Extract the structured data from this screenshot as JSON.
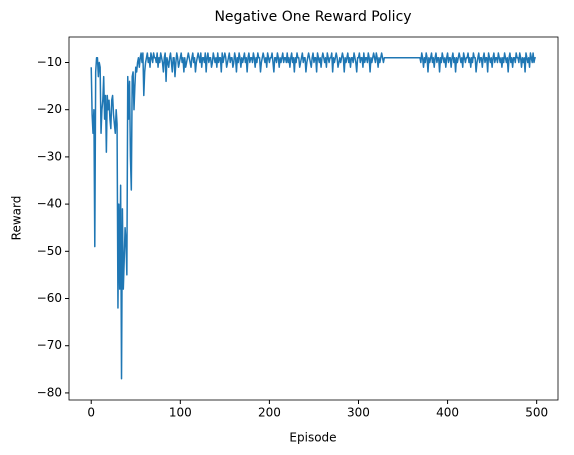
{
  "chart_data": {
    "type": "line",
    "title": "Negative One Reward Policy",
    "x_label": "Episode",
    "y_label": "Reward",
    "xlim": [
      -24.95,
      523.95
    ],
    "xticks": [
      0,
      100,
      200,
      300,
      400,
      500
    ],
    "ylim": [
      -81.5,
      -4.6
    ],
    "yticks": [
      {
        "value": -10,
        "label": "−10"
      },
      {
        "value": -20,
        "label": "−20"
      },
      {
        "value": -30,
        "label": "−30"
      },
      {
        "value": -40,
        "label": "−40"
      },
      {
        "value": -50,
        "label": "−50"
      },
      {
        "value": -60,
        "label": "−60"
      },
      {
        "value": -70,
        "label": "−70"
      },
      {
        "value": -80,
        "label": "−80"
      }
    ],
    "grid": false,
    "color": "#1f77b4",
    "values": [
      -11,
      -21,
      -25,
      -20,
      -49,
      -12,
      -9,
      -9,
      -13,
      -10,
      -11,
      -25,
      -20,
      -18,
      -13,
      -22,
      -17,
      -29,
      -17,
      -20,
      -18,
      -22,
      -24,
      -18,
      -17,
      -21,
      -23,
      -25,
      -20,
      -23,
      -62,
      -40,
      -58,
      -36,
      -77,
      -41,
      -58,
      -52,
      -45,
      -48,
      -55,
      -13,
      -22,
      -14,
      -30,
      -37,
      -13,
      -12,
      -20,
      -15,
      -11,
      -12,
      -10,
      -9,
      -11,
      -9,
      -8,
      -10,
      -8,
      -17,
      -12,
      -10,
      -9,
      -8,
      -10,
      -9,
      -11,
      -8,
      -9,
      -10,
      -8,
      -9,
      -9,
      -10,
      -8,
      -11,
      -9,
      -10,
      -8,
      -9,
      -10,
      -12,
      -9,
      -8,
      -14,
      -9,
      -10,
      -11,
      -9,
      -8,
      -10,
      -12,
      -9,
      -9,
      -13,
      -10,
      -8,
      -9,
      -11,
      -10,
      -9,
      -8,
      -10,
      -9,
      -12,
      -9,
      -11,
      -10,
      -9,
      -8,
      -9,
      -10,
      -11,
      -9,
      -8,
      -10,
      -9,
      -12,
      -10,
      -9,
      -8,
      -9,
      -10,
      -8,
      -11,
      -9,
      -9,
      -10,
      -8,
      -12,
      -9,
      -8,
      -10,
      -9,
      -9,
      -11,
      -10,
      -8,
      -9,
      -10,
      -9,
      -11,
      -8,
      -10,
      -9,
      -9,
      -12,
      -8,
      -10,
      -9,
      -8,
      -9,
      -11,
      -10,
      -9,
      -8,
      -10,
      -9,
      -9,
      -11,
      -10,
      -8,
      -9,
      -12,
      -9,
      -10,
      -8,
      -9,
      -11,
      -9,
      -10,
      -9,
      -8,
      -10,
      -9,
      -12,
      -9,
      -8,
      -10,
      -9,
      -9,
      -10,
      -8,
      -9,
      -11,
      -9,
      -10,
      -8,
      -9,
      -9,
      -12,
      -10,
      -9,
      -8,
      -9,
      -10,
      -9,
      -11,
      -8,
      -9,
      -10,
      -9,
      -9,
      -8,
      -10,
      -12,
      -9,
      -9,
      -10,
      -8,
      -9,
      -11,
      -9,
      -10,
      -9,
      -8,
      -10,
      -9,
      -9,
      -10,
      -8,
      -10,
      -9,
      -11,
      -9,
      -8,
      -10,
      -9,
      -12,
      -9,
      -10,
      -8,
      -9,
      -9,
      -11,
      -10,
      -9,
      -8,
      -10,
      -9,
      -9,
      -12,
      -10,
      -9,
      -8,
      -9,
      -10,
      -11,
      -9,
      -8,
      -10,
      -9,
      -9,
      -12,
      -8,
      -9,
      -10,
      -9,
      -11,
      -9,
      -8,
      -9,
      -10,
      -9,
      -11,
      -8,
      -9,
      -10,
      -9,
      -9,
      -8,
      -12,
      -9,
      -10,
      -9,
      -8,
      -9,
      -11,
      -10,
      -9,
      -10,
      -9,
      -8,
      -9,
      -12,
      -9,
      -10,
      -9,
      -8,
      -10,
      -9,
      -11,
      -9,
      -9,
      -10,
      -8,
      -9,
      -10,
      -12,
      -9,
      -9,
      -8,
      -10,
      -9,
      -9,
      -11,
      -8,
      -10,
      -9,
      -9,
      -10,
      -8,
      -9,
      -12,
      -9,
      -10,
      -9,
      -8,
      -9,
      -10,
      -8,
      -9,
      -11,
      -9,
      -10,
      -9,
      -8,
      -9,
      -10,
      -9,
      -9,
      -9,
      -9,
      -9,
      -9,
      -9,
      -9,
      -9,
      -9,
      -9,
      -9,
      -9,
      -9,
      -9,
      -9,
      -9,
      -9,
      -9,
      -9,
      -9,
      -9,
      -9,
      -9,
      -9,
      -9,
      -9,
      -9,
      -9,
      -9,
      -9,
      -9,
      -9,
      -9,
      -9,
      -9,
      -9,
      -9,
      -9,
      -9,
      -9,
      -10,
      -8,
      -9,
      -11,
      -9,
      -10,
      -8,
      -9,
      -12,
      -9,
      -10,
      -9,
      -8,
      -10,
      -9,
      -11,
      -9,
      -8,
      -10,
      -9,
      -9,
      -12,
      -9,
      -10,
      -8,
      -9,
      -10,
      -9,
      -11,
      -9,
      -8,
      -10,
      -9,
      -9,
      -11,
      -9,
      -8,
      -10,
      -9,
      -12,
      -9,
      -10,
      -9,
      -8,
      -9,
      -10,
      -9,
      -11,
      -8,
      -9,
      -10,
      -9,
      -9,
      -8,
      -10,
      -9,
      -11,
      -9,
      -10,
      -8,
      -9,
      -9,
      -12,
      -10,
      -9,
      -8,
      -10,
      -9,
      -9,
      -11,
      -9,
      -8,
      -10,
      -9,
      -9,
      -12,
      -8,
      -9,
      -10,
      -9,
      -11,
      -9,
      -8,
      -10,
      -9,
      -9,
      -10,
      -8,
      -9,
      -10,
      -9,
      -11,
      -9,
      -10,
      -8,
      -9,
      -10,
      -9,
      -12,
      -9,
      -8,
      -10,
      -9,
      -11,
      -9,
      -9,
      -10,
      -8,
      -9,
      -9,
      -10,
      -8,
      -9,
      -11,
      -9,
      -10,
      -9,
      -12,
      -8,
      -9,
      -10,
      -9,
      -11,
      -8,
      -9,
      -10,
      -8,
      -10,
      -9,
      -9
    ]
  }
}
